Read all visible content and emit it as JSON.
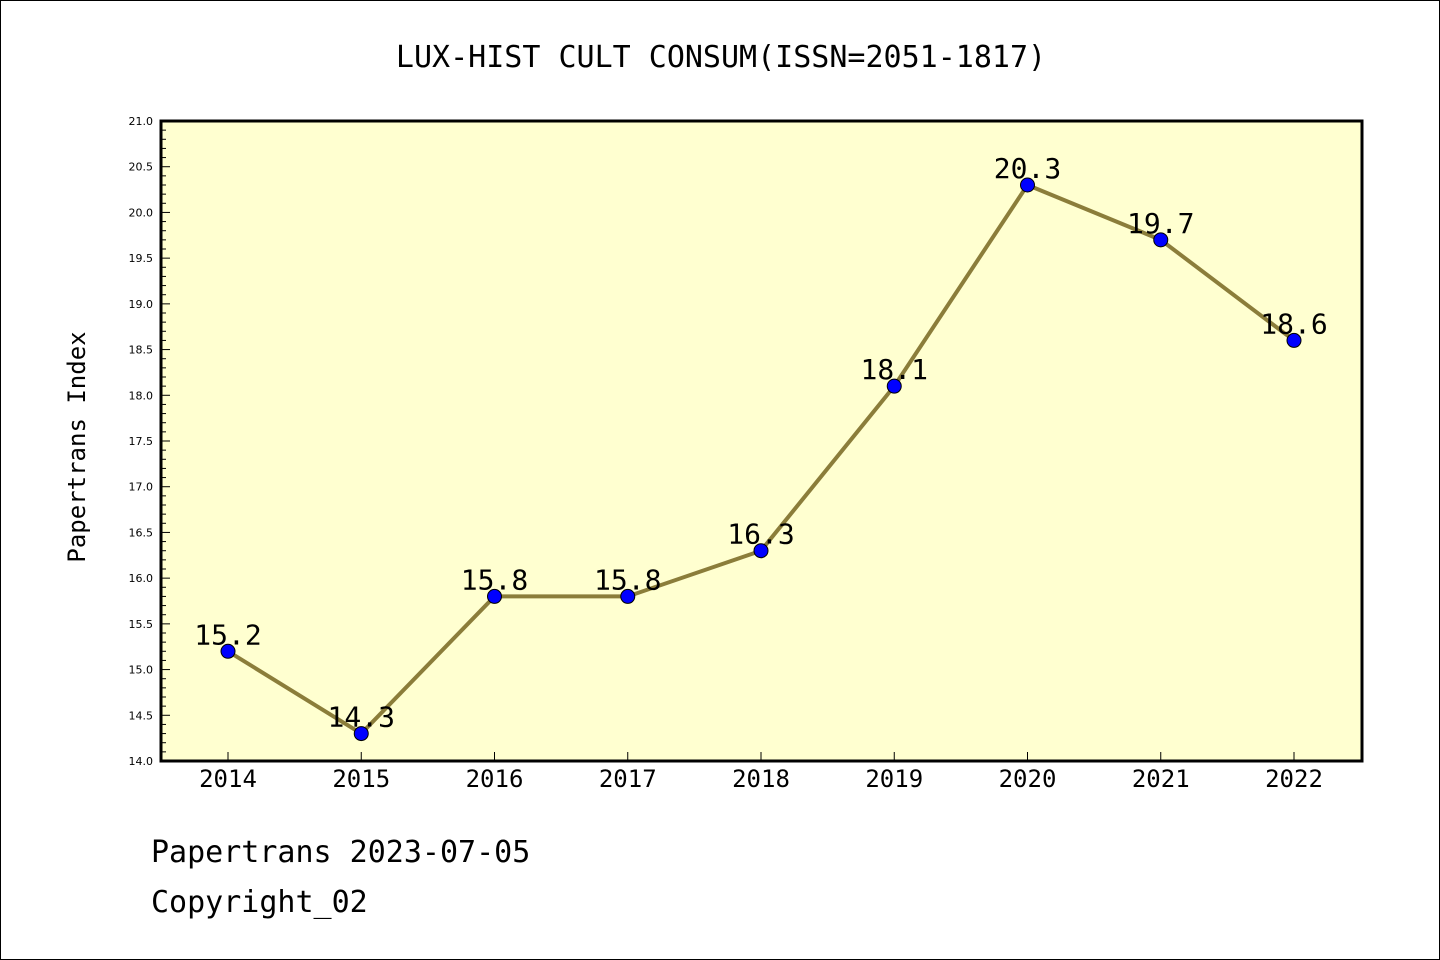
{
  "chart_data": {
    "type": "line",
    "title": "LUX-HIST CULT CONSUM(ISSN=2051-1817)",
    "ylabel": "Papertrans Index",
    "xlabel": "",
    "categories": [
      "2014",
      "2015",
      "2016",
      "2017",
      "2018",
      "2019",
      "2020",
      "2021",
      "2022"
    ],
    "series": [
      {
        "values": [
          15.2,
          14.3,
          15.8,
          15.8,
          16.3,
          18.1,
          20.3,
          19.7,
          18.6
        ],
        "labels": [
          "15.2",
          "14.3",
          "15.8",
          "15.8",
          "16.3",
          "18.1",
          "20.3",
          "19.7",
          "18.6"
        ]
      }
    ],
    "ylim": [
      14.0,
      21.0
    ],
    "yticks": [
      "14.0",
      "14.5",
      "15.0",
      "15.5",
      "16.0",
      "16.5",
      "17.0",
      "17.5",
      "18.0",
      "18.5",
      "19.0",
      "19.5",
      "20.0",
      "20.5",
      "21.0"
    ],
    "grid": false,
    "legend": "none"
  },
  "colors": {
    "plot_background": "#ffffd0",
    "line": "#8b7d3a",
    "marker": "#0000ff"
  },
  "footer": {
    "date_line": "Papertrans 2023-07-05",
    "copyright": "Copyright_02"
  }
}
